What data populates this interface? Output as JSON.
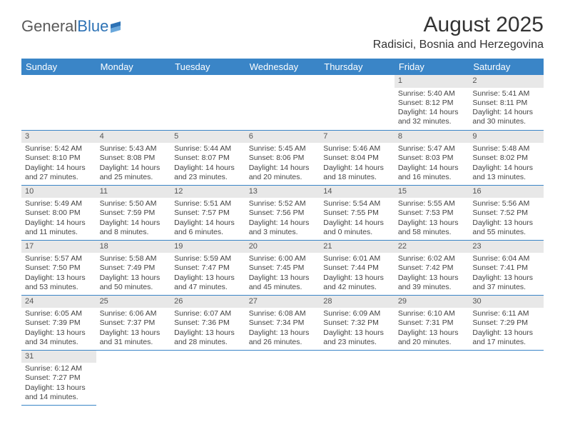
{
  "logo": {
    "text1": "General",
    "text2": "Blue"
  },
  "title": "August 2025",
  "location": "Radisici, Bosnia and Herzegovina",
  "colors": {
    "header_bg": "#3a85c7",
    "header_text": "#ffffff",
    "daynum_bg": "#e8e8e8",
    "border": "#3a85c7",
    "logo_gray": "#5a5a5a",
    "logo_blue": "#2d72b5"
  },
  "layout": {
    "cols": 7,
    "rows": 6
  },
  "weekdays": [
    "Sunday",
    "Monday",
    "Tuesday",
    "Wednesday",
    "Thursday",
    "Friday",
    "Saturday"
  ],
  "cells": [
    null,
    null,
    null,
    null,
    null,
    {
      "n": "1",
      "sr": "5:40 AM",
      "ss": "8:12 PM",
      "dl": "14 hours and 32 minutes."
    },
    {
      "n": "2",
      "sr": "5:41 AM",
      "ss": "8:11 PM",
      "dl": "14 hours and 30 minutes."
    },
    {
      "n": "3",
      "sr": "5:42 AM",
      "ss": "8:10 PM",
      "dl": "14 hours and 27 minutes."
    },
    {
      "n": "4",
      "sr": "5:43 AM",
      "ss": "8:08 PM",
      "dl": "14 hours and 25 minutes."
    },
    {
      "n": "5",
      "sr": "5:44 AM",
      "ss": "8:07 PM",
      "dl": "14 hours and 23 minutes."
    },
    {
      "n": "6",
      "sr": "5:45 AM",
      "ss": "8:06 PM",
      "dl": "14 hours and 20 minutes."
    },
    {
      "n": "7",
      "sr": "5:46 AM",
      "ss": "8:04 PM",
      "dl": "14 hours and 18 minutes."
    },
    {
      "n": "8",
      "sr": "5:47 AM",
      "ss": "8:03 PM",
      "dl": "14 hours and 16 minutes."
    },
    {
      "n": "9",
      "sr": "5:48 AM",
      "ss": "8:02 PM",
      "dl": "14 hours and 13 minutes."
    },
    {
      "n": "10",
      "sr": "5:49 AM",
      "ss": "8:00 PM",
      "dl": "14 hours and 11 minutes."
    },
    {
      "n": "11",
      "sr": "5:50 AM",
      "ss": "7:59 PM",
      "dl": "14 hours and 8 minutes."
    },
    {
      "n": "12",
      "sr": "5:51 AM",
      "ss": "7:57 PM",
      "dl": "14 hours and 6 minutes."
    },
    {
      "n": "13",
      "sr": "5:52 AM",
      "ss": "7:56 PM",
      "dl": "14 hours and 3 minutes."
    },
    {
      "n": "14",
      "sr": "5:54 AM",
      "ss": "7:55 PM",
      "dl": "14 hours and 0 minutes."
    },
    {
      "n": "15",
      "sr": "5:55 AM",
      "ss": "7:53 PM",
      "dl": "13 hours and 58 minutes."
    },
    {
      "n": "16",
      "sr": "5:56 AM",
      "ss": "7:52 PM",
      "dl": "13 hours and 55 minutes."
    },
    {
      "n": "17",
      "sr": "5:57 AM",
      "ss": "7:50 PM",
      "dl": "13 hours and 53 minutes."
    },
    {
      "n": "18",
      "sr": "5:58 AM",
      "ss": "7:49 PM",
      "dl": "13 hours and 50 minutes."
    },
    {
      "n": "19",
      "sr": "5:59 AM",
      "ss": "7:47 PM",
      "dl": "13 hours and 47 minutes."
    },
    {
      "n": "20",
      "sr": "6:00 AM",
      "ss": "7:45 PM",
      "dl": "13 hours and 45 minutes."
    },
    {
      "n": "21",
      "sr": "6:01 AM",
      "ss": "7:44 PM",
      "dl": "13 hours and 42 minutes."
    },
    {
      "n": "22",
      "sr": "6:02 AM",
      "ss": "7:42 PM",
      "dl": "13 hours and 39 minutes."
    },
    {
      "n": "23",
      "sr": "6:04 AM",
      "ss": "7:41 PM",
      "dl": "13 hours and 37 minutes."
    },
    {
      "n": "24",
      "sr": "6:05 AM",
      "ss": "7:39 PM",
      "dl": "13 hours and 34 minutes."
    },
    {
      "n": "25",
      "sr": "6:06 AM",
      "ss": "7:37 PM",
      "dl": "13 hours and 31 minutes."
    },
    {
      "n": "26",
      "sr": "6:07 AM",
      "ss": "7:36 PM",
      "dl": "13 hours and 28 minutes."
    },
    {
      "n": "27",
      "sr": "6:08 AM",
      "ss": "7:34 PM",
      "dl": "13 hours and 26 minutes."
    },
    {
      "n": "28",
      "sr": "6:09 AM",
      "ss": "7:32 PM",
      "dl": "13 hours and 23 minutes."
    },
    {
      "n": "29",
      "sr": "6:10 AM",
      "ss": "7:31 PM",
      "dl": "13 hours and 20 minutes."
    },
    {
      "n": "30",
      "sr": "6:11 AM",
      "ss": "7:29 PM",
      "dl": "13 hours and 17 minutes."
    },
    {
      "n": "31",
      "sr": "6:12 AM",
      "ss": "7:27 PM",
      "dl": "13 hours and 14 minutes."
    },
    null,
    null,
    null,
    null,
    null,
    null
  ],
  "labels": {
    "sunrise": "Sunrise:",
    "sunset": "Sunset:",
    "daylight": "Daylight:"
  }
}
